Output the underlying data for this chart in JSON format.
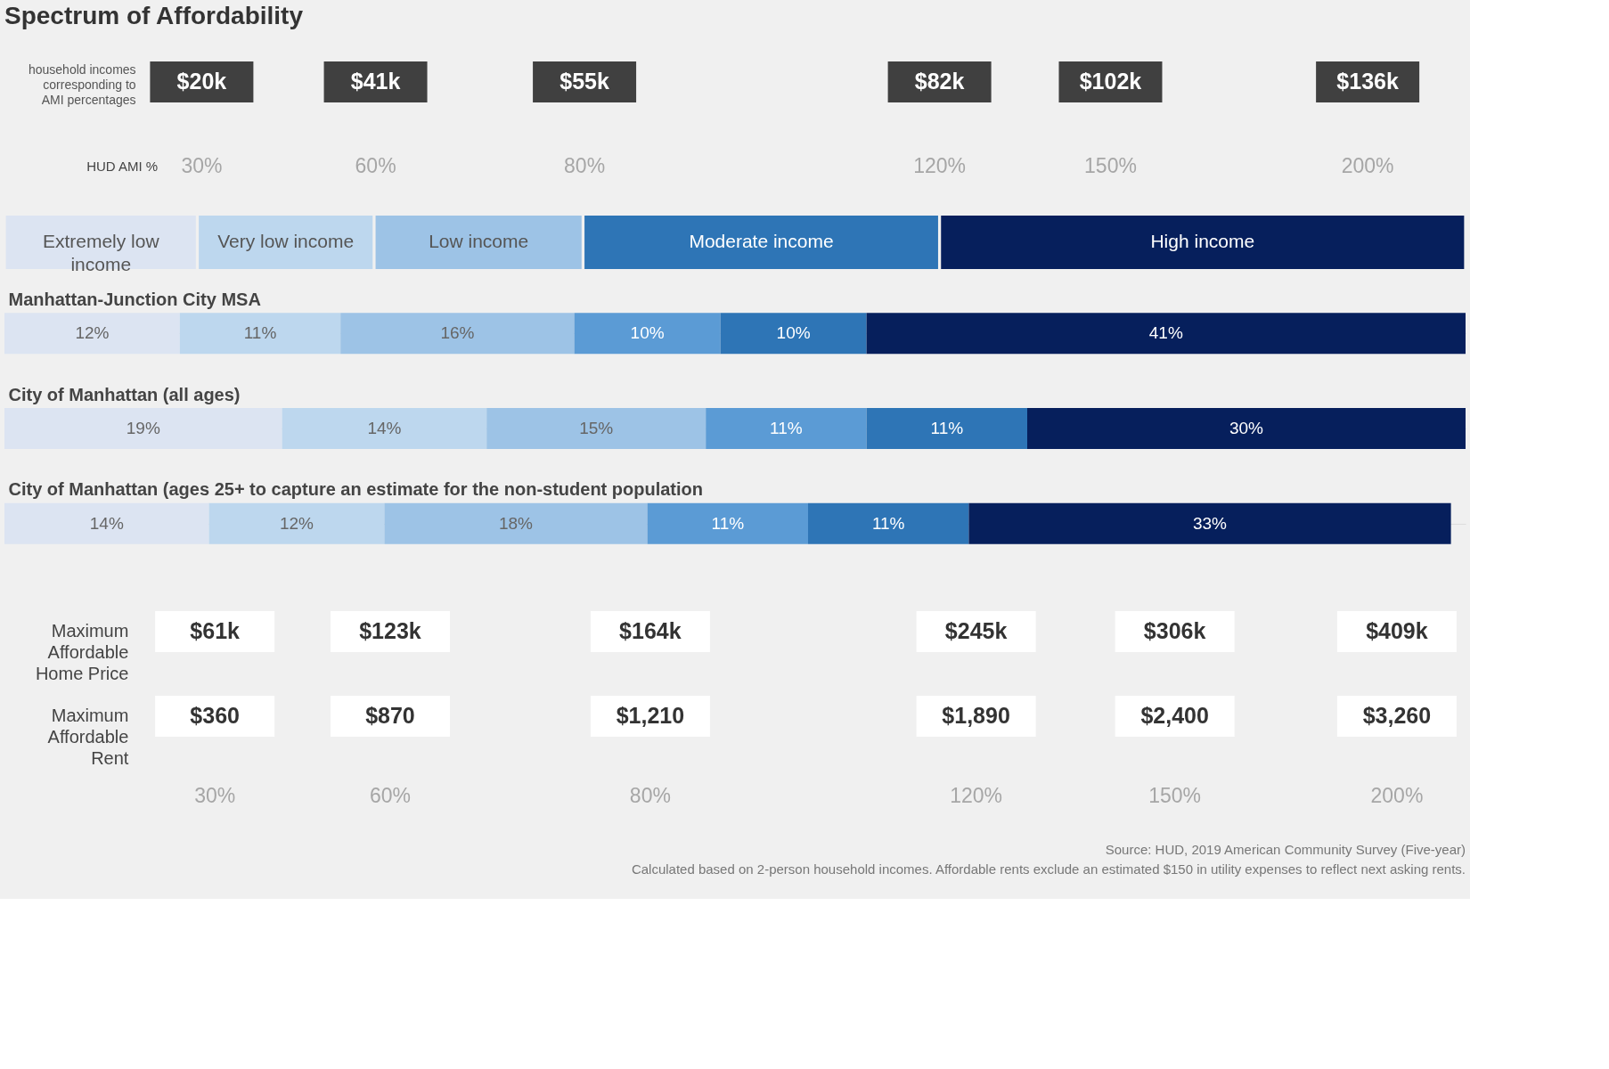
{
  "chart_data": {
    "type": "bar",
    "orientation": "horizontal",
    "stacked": true,
    "title": "Spectrum of Affordability",
    "categories": [
      "Manhattan-Junction City MSA",
      "City of Manhattan (all ages)",
      "City of Manhattan (ages 25+ to capture an estimate for the non-student population"
    ],
    "series": [
      {
        "color": "#dce4f2",
        "values": [
          12,
          19,
          14
        ],
        "value_labels": [
          "12%",
          "19%",
          "14%"
        ]
      },
      {
        "color": "#bdd7ee",
        "values": [
          11,
          14,
          12
        ],
        "value_labels": [
          "11%",
          "14%",
          "12%"
        ]
      },
      {
        "color": "#9dc3e6",
        "values": [
          16,
          15,
          18
        ],
        "value_labels": [
          "16%",
          "15%",
          "18%"
        ]
      },
      {
        "color": "#5b9bd5",
        "values": [
          10,
          11,
          11
        ],
        "value_labels": [
          "10%",
          "11%",
          "11%"
        ]
      },
      {
        "color": "#2e75b6",
        "values": [
          10,
          11,
          11
        ],
        "value_labels": [
          "10%",
          "11%",
          "11%"
        ]
      },
      {
        "color": "#061f5c",
        "values": [
          41,
          30,
          33
        ],
        "value_labels": [
          "41%",
          "30%",
          "33%"
        ]
      }
    ],
    "annotations": [
      "household incomes corresponding to AMI percentages",
      "$20k",
      "$41k",
      "$55k",
      "$82k",
      "$102k",
      "$136k",
      "HUD AMI %",
      "30%",
      "60%",
      "80%",
      "120%",
      "150%",
      "200%",
      "Extremely low income",
      "Very low income",
      "Low income",
      "Moderate income",
      "High income",
      "Maximum Affordable Home Price",
      "$61k",
      "$123k",
      "$164k",
      "$245k",
      "$306k",
      "$409k",
      "Maximum Affordable Rent",
      "$360",
      "$870",
      "$1,210",
      "$1,890",
      "$2,400",
      "$3,260",
      "30%",
      "60%",
      "80%",
      "120%",
      "150%",
      "200%",
      "Source: HUD, 2019 American Community Survey (Five-year)",
      "Calculated based on 2-person household incomes. Affordable rents exclude an estimated $150 in utility expenses to reflect next asking rents."
    ]
  }
}
